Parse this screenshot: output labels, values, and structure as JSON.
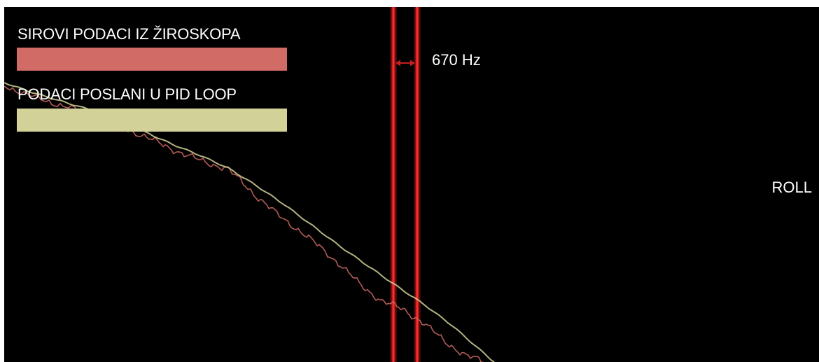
{
  "chart_data": {
    "type": "line",
    "axis_label": "ROLL",
    "frequency_annotation": "670 Hz",
    "legend": [
      {
        "label": "SIROVI PODACI IZ ŽIROSKOPA",
        "color": "#d16b66"
      },
      {
        "label": "PODACI POSLANI U PID LOOP",
        "color": "#d2d197"
      }
    ],
    "series": [
      {
        "name": "SIROVI PODACI IZ ŽIROSKOPA",
        "color": "#d16b66",
        "style": "jagged",
        "x": [
          0,
          40,
          80,
          120,
          160,
          200,
          230,
          260,
          290,
          320,
          340,
          360,
          390,
          420,
          450,
          480,
          510,
          540,
          570,
          600,
          630,
          660,
          690
        ],
        "y": [
          112,
          128,
          140,
          152,
          168,
          185,
          198,
          212,
          222,
          232,
          250,
          270,
          296,
          318,
          342,
          368,
          398,
          420,
          432,
          452,
          478,
          498,
          508
        ]
      },
      {
        "name": "PODACI POSLANI U PID LOOP",
        "color": "#d2d197",
        "style": "smooth",
        "x": [
          0,
          40,
          80,
          120,
          160,
          200,
          240,
          280,
          320,
          360,
          400,
          440,
          480,
          520,
          560,
          600,
          640,
          680,
          700
        ],
        "y": [
          108,
          122,
          134,
          146,
          160,
          178,
          196,
          212,
          230,
          255,
          282,
          312,
          342,
          370,
          398,
          425,
          455,
          490,
          507
        ]
      }
    ],
    "vertical_markers": [
      {
        "x": 556,
        "color": "#ff2a2a"
      },
      {
        "x": 590,
        "color": "#ff2a2a"
      }
    ],
    "arrow_color": "#c42020",
    "background": "#000000",
    "grid": false
  }
}
